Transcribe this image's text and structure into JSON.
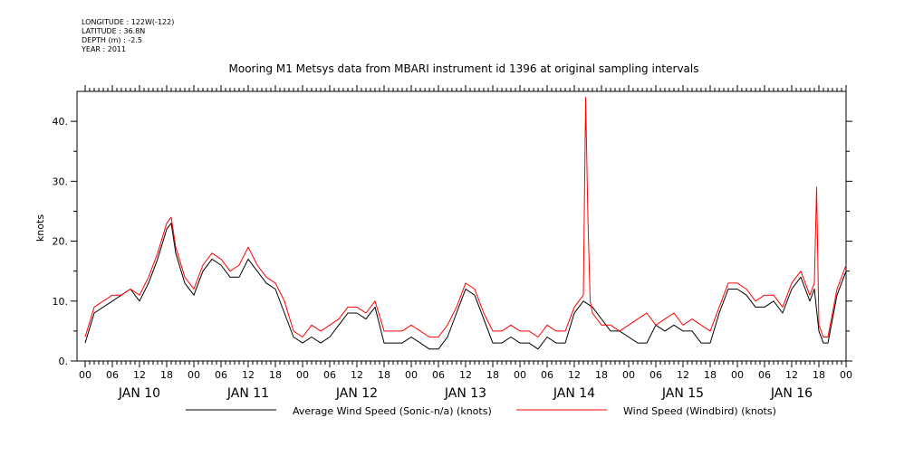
{
  "metadata": {
    "longitude": "LONGITUDE : 122W(-122)",
    "latitude": "LATITUDE : 36.8N",
    "depth": "DEPTH (m) : -2.5",
    "year": "YEAR : 2011"
  },
  "chart_data": {
    "type": "line",
    "title": "Mooring M1 Metsys data from MBARI instrument id 1396 at original sampling intervals",
    "ylabel": "knots",
    "xlabel": "",
    "xlim_hours": [
      0,
      168
    ],
    "ylim": [
      0,
      45
    ],
    "y_ticks": [
      0,
      10,
      20,
      30,
      40
    ],
    "y_tick_labels": [
      "0.",
      "10.",
      "20.",
      "30.",
      "40."
    ],
    "hour_tick_labels": [
      "00",
      "06",
      "12",
      "18",
      "00",
      "06",
      "12",
      "18",
      "00",
      "06",
      "12",
      "18",
      "00",
      "06",
      "12",
      "18",
      "00",
      "06",
      "12",
      "18",
      "00",
      "06",
      "12",
      "18",
      "00",
      "06",
      "12",
      "18",
      "00"
    ],
    "day_labels": [
      "JAN 10",
      "JAN 11",
      "JAN 12",
      "JAN 13",
      "JAN 14",
      "JAN 15",
      "JAN 16"
    ],
    "x_unit_note": "x values are hours since 2011-01-10 00:00 UTC",
    "series": [
      {
        "name": "Average Wind Speed (Sonic-n/a) (knots)",
        "color": "#000000",
        "x": [
          0,
          2,
          4,
          6,
          8,
          10,
          12,
          14,
          16,
          18,
          19,
          20,
          22,
          24,
          26,
          28,
          30,
          32,
          34,
          36,
          38,
          40,
          42,
          44,
          46,
          48,
          50,
          52,
          54,
          56,
          58,
          60,
          62,
          64,
          66,
          68,
          70,
          72,
          74,
          76,
          78,
          80,
          82,
          84,
          86,
          88,
          90,
          92,
          94,
          96,
          98,
          100,
          102,
          104,
          106,
          108,
          110,
          112,
          114,
          116,
          118,
          120,
          122,
          124,
          126,
          128,
          130,
          132,
          134,
          136,
          138,
          140,
          142,
          144,
          146,
          148,
          150,
          152,
          154,
          156,
          158,
          160,
          161,
          162,
          163,
          164,
          166,
          168
        ],
        "y": [
          3,
          8,
          9,
          10,
          11,
          12,
          10,
          13,
          17,
          22,
          23,
          18,
          13,
          11,
          15,
          17,
          16,
          14,
          14,
          17,
          15,
          13,
          12,
          8,
          4,
          3,
          4,
          3,
          4,
          6,
          8,
          8,
          7,
          9,
          3,
          3,
          3,
          4,
          3,
          2,
          2,
          4,
          8,
          12,
          11,
          7,
          3,
          3,
          4,
          3,
          3,
          2,
          4,
          3,
          3,
          8,
          10,
          9,
          7,
          5,
          5,
          4,
          3,
          3,
          6,
          5,
          6,
          5,
          5,
          3,
          3,
          8,
          12,
          12,
          11,
          9,
          9,
          10,
          8,
          12,
          14,
          10,
          12,
          5,
          3,
          3,
          11,
          15
        ]
      },
      {
        "name": "Wind Speed (Windbird) (knots)",
        "color": "#ff0000",
        "x": [
          0,
          2,
          4,
          6,
          8,
          10,
          12,
          14,
          16,
          18,
          19,
          20,
          22,
          24,
          26,
          28,
          30,
          32,
          34,
          36,
          38,
          40,
          42,
          44,
          46,
          48,
          50,
          52,
          54,
          56,
          58,
          60,
          62,
          64,
          66,
          68,
          70,
          72,
          74,
          76,
          78,
          80,
          82,
          84,
          86,
          88,
          90,
          92,
          94,
          96,
          98,
          100,
          102,
          104,
          106,
          108,
          110,
          110.5,
          111,
          111.5,
          112,
          114,
          116,
          118,
          120,
          122,
          124,
          126,
          128,
          130,
          132,
          134,
          136,
          138,
          140,
          142,
          144,
          146,
          148,
          150,
          152,
          154,
          156,
          158,
          160,
          161,
          161.5,
          162,
          163,
          164,
          166,
          168
        ],
        "y": [
          4,
          9,
          10,
          11,
          11,
          12,
          11,
          14,
          18,
          23,
          24,
          19,
          14,
          12,
          16,
          18,
          17,
          15,
          16,
          19,
          16,
          14,
          13,
          10,
          5,
          4,
          6,
          5,
          6,
          7,
          9,
          9,
          8,
          10,
          5,
          5,
          5,
          6,
          5,
          4,
          4,
          6,
          9,
          13,
          12,
          8,
          5,
          5,
          6,
          5,
          5,
          4,
          6,
          5,
          5,
          9,
          11,
          44,
          24,
          10,
          8,
          6,
          6,
          5,
          6,
          7,
          8,
          6,
          7,
          8,
          6,
          7,
          6,
          5,
          9,
          13,
          13,
          12,
          10,
          11,
          11,
          9,
          13,
          15,
          11,
          13,
          29,
          6,
          4,
          4,
          12,
          16
        ]
      }
    ],
    "legend_position": "bottom",
    "grid": false
  }
}
